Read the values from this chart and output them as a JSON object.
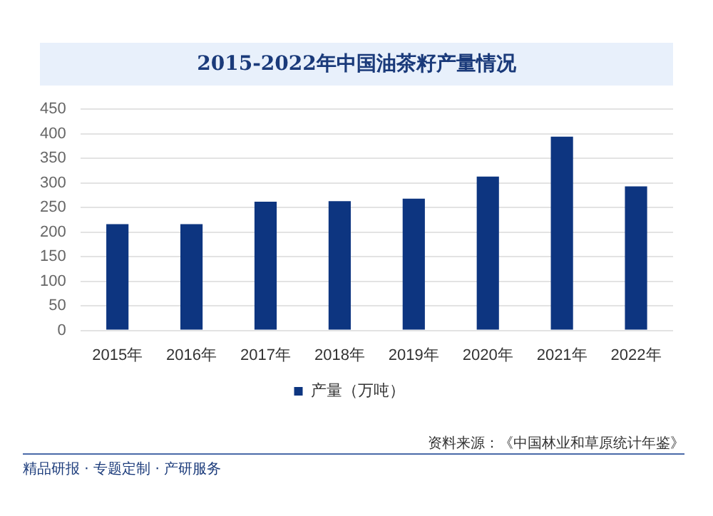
{
  "chart_data": {
    "type": "bar",
    "title": "2015-2022年中国油茶籽产量情况",
    "categories": [
      "2015年",
      "2016年",
      "2017年",
      "2018年",
      "2019年",
      "2020年",
      "2021年",
      "2022年"
    ],
    "series": [
      {
        "name": "产量（万吨）",
        "color": "#0d3580",
        "values": [
          216,
          216,
          262,
          263,
          268,
          313,
          394,
          293
        ]
      }
    ],
    "ylim": [
      0,
      450
    ],
    "yticks": [
      0,
      50,
      100,
      150,
      200,
      250,
      300,
      350,
      400,
      450
    ],
    "grid": "y",
    "legend": "bottom",
    "annotations": [
      "资料来源：《中国林业和草原统计年鉴》",
      "精品研报 · 专题定制 · 产研服务"
    ]
  }
}
